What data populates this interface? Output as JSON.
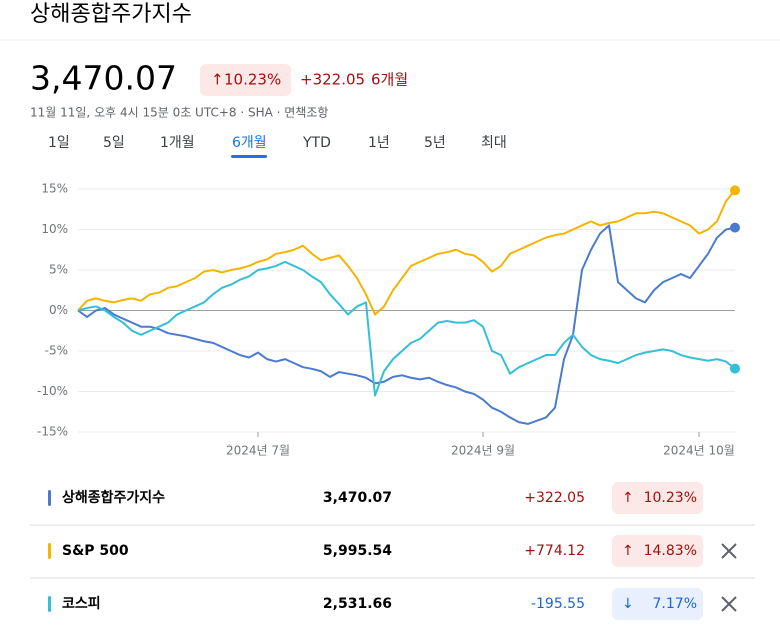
{
  "header": {
    "title": "상해종합주가지수",
    "price": "3,470.07",
    "change_percent": "10.23%",
    "change": "+322.05",
    "period": "6개월",
    "subtitle": "11월 11일, 오후 4시 15분 0초 UTC+8 · SHA · 면책조항"
  },
  "tabs": {
    "items": [
      "1일",
      "5일",
      "1개월",
      "6개월",
      "YTD",
      "1년",
      "5년",
      "최대"
    ],
    "selected": 3
  },
  "chart_data": {
    "type": "line",
    "categories": [
      null,
      null,
      null,
      null,
      null,
      null,
      null,
      null,
      null,
      null,
      null,
      null,
      null,
      null,
      null,
      null,
      null,
      null,
      null,
      null,
      "2024년 7월",
      null,
      null,
      null,
      null,
      null,
      null,
      null,
      null,
      null,
      null,
      null,
      null,
      null,
      null,
      null,
      null,
      null,
      null,
      null,
      null,
      null,
      null,
      null,
      null,
      "2024년 9월",
      null,
      null,
      null,
      null,
      null,
      null,
      null,
      null,
      null,
      null,
      null,
      null,
      null,
      null,
      null,
      null,
      null,
      null,
      null,
      null,
      null,
      null,
      null,
      "2024년 10월",
      null,
      null,
      null,
      null
    ],
    "series": [
      {
        "name": "상해종합주가지수",
        "color": "#4a7bd0",
        "values": [
          0,
          -0.8,
          0,
          0.3,
          -0.5,
          -1,
          -1.5,
          -2,
          -2,
          -2.3,
          -2.8,
          -3,
          -3.2,
          -3.5,
          -3.8,
          -4,
          -4.5,
          -5,
          -5.5,
          -5.8,
          -5.2,
          -6,
          -6.3,
          -6,
          -6.5,
          -7,
          -7.2,
          -7.5,
          -8.2,
          -7.6,
          -7.8,
          -8,
          -8.3,
          -9,
          -8.8,
          -8.2,
          -8,
          -8.3,
          -8.5,
          -8.3,
          -8.8,
          -9.2,
          -9.5,
          -10,
          -10.3,
          -11,
          -12,
          -12.5,
          -13.2,
          -13.8,
          -14,
          -13.6,
          -13.2,
          -12,
          -6,
          -3,
          5,
          7.5,
          9.5,
          10.5,
          3.5,
          2.5,
          1.5,
          1,
          2.5,
          3.5,
          4,
          4.5,
          4,
          5.5,
          7,
          9,
          10,
          10.23
        ]
      },
      {
        "name": "S&P 500",
        "color": "#f5b400",
        "values": [
          0,
          1.2,
          1.5,
          1.2,
          1,
          1.3,
          1.5,
          1.2,
          2,
          2.2,
          2.8,
          3,
          3.5,
          4,
          4.8,
          5,
          4.7,
          5,
          5.2,
          5.5,
          6,
          6.3,
          7,
          7.2,
          7.5,
          8,
          7,
          6.2,
          6.5,
          6.8,
          5.5,
          4,
          2,
          -0.5,
          0.5,
          2.5,
          4,
          5.5,
          6,
          6.5,
          7,
          7.2,
          7.5,
          7,
          6.8,
          6,
          4.8,
          5.5,
          7,
          7.5,
          8,
          8.5,
          9,
          9.3,
          9.5,
          10,
          10.5,
          11,
          10.5,
          10.8,
          11,
          11.5,
          12,
          12,
          12.2,
          12,
          11.5,
          11,
          10.5,
          9.5,
          10,
          11,
          13.5,
          14.83
        ]
      },
      {
        "name": "코스피",
        "color": "#33bfd6",
        "values": [
          0,
          0.3,
          0.5,
          0,
          -0.8,
          -1.5,
          -2.5,
          -3,
          -2.5,
          -2,
          -1.5,
          -0.5,
          0,
          0.5,
          1,
          2,
          2.8,
          3.2,
          3.8,
          4.2,
          5,
          5.2,
          5.5,
          6,
          5.5,
          5,
          4.2,
          3.5,
          2,
          0.8,
          -0.5,
          0.5,
          1,
          -10.5,
          -7.5,
          -6,
          -5,
          -4,
          -3.5,
          -2.5,
          -1.5,
          -1.3,
          -1.5,
          -1.5,
          -1.2,
          -2,
          -5,
          -5.5,
          -7.8,
          -7,
          -6.5,
          -6,
          -5.5,
          -5.5,
          -4,
          -3,
          -4.5,
          -5.5,
          -6,
          -6.2,
          -6.5,
          -6,
          -5.5,
          -5.2,
          -5,
          -4.8,
          -5,
          -5.5,
          -5.8,
          -6,
          -6.2,
          -6,
          -6.3,
          -7.17
        ]
      }
    ],
    "ylim": [
      -15,
      15
    ],
    "yticks": [
      {
        "value": -15,
        "label": "-15%"
      },
      {
        "value": -10,
        "label": "-10%"
      },
      {
        "value": -5,
        "label": "-5%"
      },
      {
        "value": 0,
        "label": "0%"
      },
      {
        "value": 5,
        "label": "5%"
      },
      {
        "value": 10,
        "label": "10%"
      },
      {
        "value": 15,
        "label": "15%"
      }
    ],
    "grid": true
  },
  "comparison": [
    {
      "price": "3,470.07",
      "change": "+322.05",
      "percent": "10.23%",
      "removable": false
    },
    {
      "price": "5,995.54",
      "change": "+774.12",
      "percent": "14.83%",
      "removable": true
    },
    {
      "price": "2,531.66",
      "change": "-195.55",
      "percent": "7.17%",
      "removable": true
    }
  ]
}
